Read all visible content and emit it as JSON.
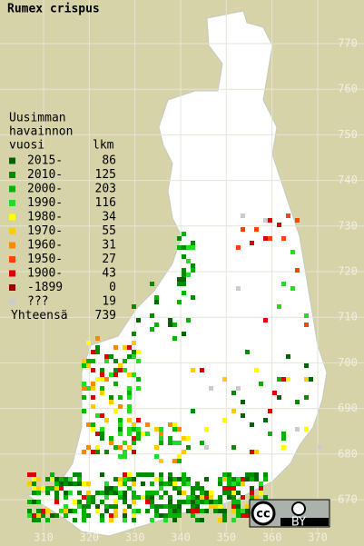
{
  "title": "Rumex crispus",
  "legend": {
    "heading": [
      "Uusimman",
      "havainnon",
      "vuosi"
    ],
    "count_heading": "lkm",
    "rows": [
      {
        "label": "2015-",
        "count": 86,
        "color": "#006400"
      },
      {
        "label": "2010-",
        "count": 125,
        "color": "#008c00"
      },
      {
        "label": "2000-",
        "count": 203,
        "color": "#00b400"
      },
      {
        "label": "1990-",
        "count": 116,
        "color": "#22dd22"
      },
      {
        "label": "1980-",
        "count": 34,
        "color": "#ffff00"
      },
      {
        "label": "1970-",
        "count": 55,
        "color": "#ffcc00"
      },
      {
        "label": "1960-",
        "count": 31,
        "color": "#ff8800"
      },
      {
        "label": "1950-",
        "count": 27,
        "color": "#ff4400"
      },
      {
        "label": "1900-",
        "count": 43,
        "color": "#dd0000"
      },
      {
        "label": "-1899",
        "count": 0,
        "color": "#990000"
      },
      {
        "label": "???",
        "count": 19,
        "color": "#cccccc"
      }
    ],
    "total_label": "Yhteensä",
    "total": 739
  },
  "x_ticks": [
    310,
    320,
    330,
    340,
    350,
    360,
    370
  ],
  "y_ticks": [
    670,
    680,
    690,
    700,
    710,
    720,
    730,
    740,
    750,
    760,
    770
  ],
  "license": {
    "by": "BY"
  }
}
